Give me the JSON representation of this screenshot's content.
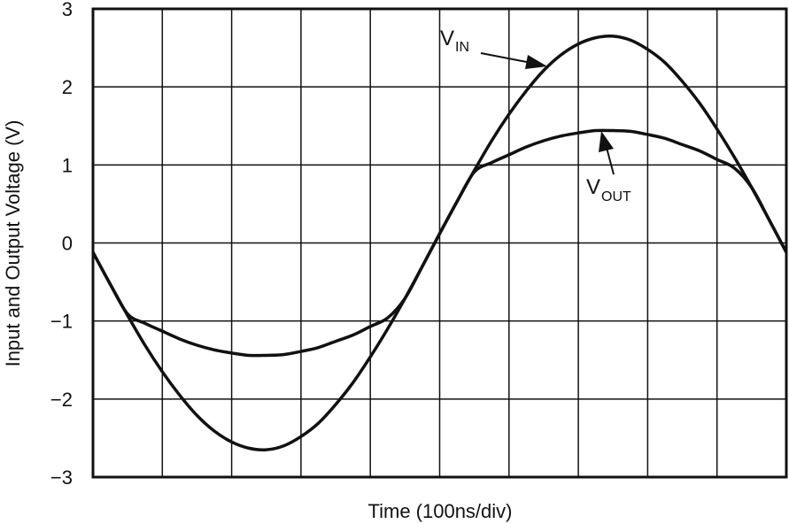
{
  "chart_data": {
    "type": "line",
    "title": "",
    "xlabel": "Time (100ns/div)",
    "ylabel": "Input and Output Voltage (V)",
    "xlim": [
      0,
      10
    ],
    "ylim": [
      -3,
      3
    ],
    "grid": true,
    "x_divisions": 10,
    "yticks": [
      3,
      2,
      1,
      0,
      -1,
      -2,
      -3
    ],
    "ytick_labels": [
      "3",
      "2",
      "1",
      "0",
      "−1",
      "−2",
      "−3"
    ],
    "x": [
      0,
      0.25,
      0.5,
      0.75,
      1,
      1.25,
      1.5,
      1.75,
      2,
      2.25,
      2.5,
      2.75,
      3,
      3.25,
      3.5,
      3.75,
      4,
      4.25,
      4.5,
      4.75,
      5,
      5.25,
      5.5,
      5.75,
      6,
      6.25,
      6.5,
      6.75,
      7,
      7.25,
      7.5,
      7.75,
      8,
      8.25,
      8.5,
      8.75,
      9,
      9.25,
      9.5,
      9.75,
      10
    ],
    "series": [
      {
        "name": "VIN",
        "color": "#111111",
        "values": [
          -0.12,
          -0.53,
          -0.93,
          -1.31,
          -1.65,
          -1.95,
          -2.21,
          -2.41,
          -2.55,
          -2.63,
          -2.65,
          -2.6,
          -2.48,
          -2.31,
          -2.07,
          -1.79,
          -1.46,
          -1.1,
          -0.71,
          -0.3,
          0.12,
          0.53,
          0.93,
          1.31,
          1.65,
          1.95,
          2.21,
          2.41,
          2.55,
          2.63,
          2.65,
          2.6,
          2.48,
          2.31,
          2.07,
          1.79,
          1.46,
          1.1,
          0.71,
          0.3,
          -0.12
        ]
      },
      {
        "name": "VOUT",
        "color": "#111111",
        "values": [
          -0.12,
          -0.53,
          -0.91,
          -1.03,
          -1.13,
          -1.23,
          -1.31,
          -1.37,
          -1.41,
          -1.44,
          -1.44,
          -1.43,
          -1.39,
          -1.34,
          -1.26,
          -1.18,
          -1.07,
          -0.96,
          -0.71,
          -0.3,
          0.12,
          0.53,
          0.91,
          1.03,
          1.13,
          1.23,
          1.31,
          1.37,
          1.41,
          1.44,
          1.44,
          1.43,
          1.39,
          1.34,
          1.26,
          1.18,
          1.07,
          0.96,
          0.71,
          0.3,
          -0.12
        ]
      }
    ],
    "annotations": [
      {
        "series": "VIN",
        "main": "V",
        "sub": "IN"
      },
      {
        "series": "VOUT",
        "main": "V",
        "sub": "OUT"
      }
    ]
  }
}
